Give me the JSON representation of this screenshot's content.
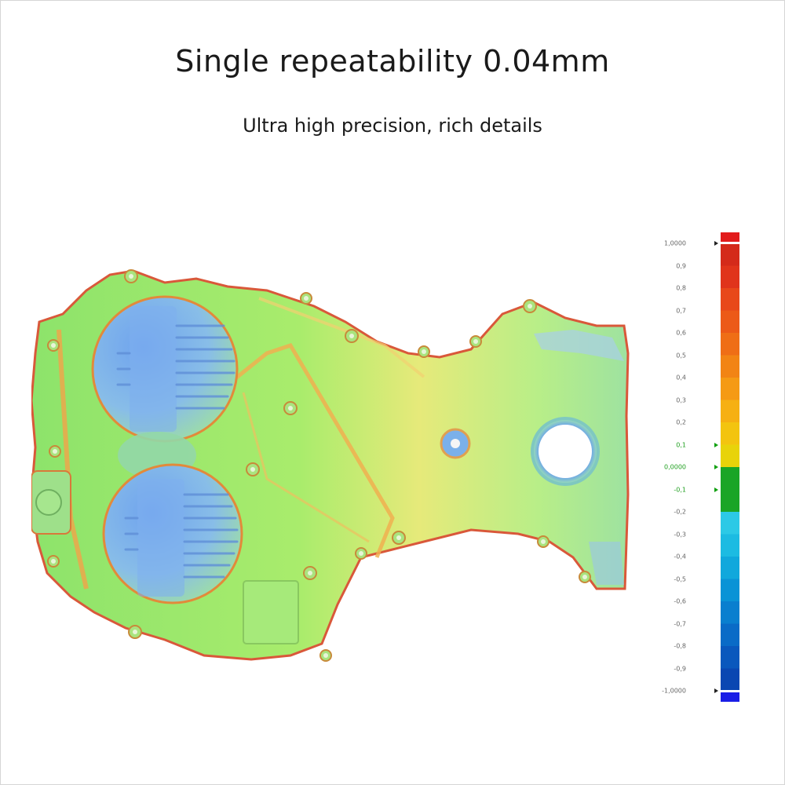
{
  "header": {
    "title": "Single repeatability 0.04mm",
    "subtitle": "Ultra high precision, rich details"
  },
  "color_scale": {
    "labels": [
      "1,0000",
      "0,9",
      "0,8",
      "0,7",
      "0,6",
      "0,5",
      "0,4",
      "0,3",
      "0,2",
      "0,1",
      "0,0000",
      "-0,1",
      "-0,2",
      "-0,3",
      "-0,4",
      "-0,5",
      "-0,6",
      "-0,7",
      "-0,8",
      "-0,9",
      "-1,0000"
    ],
    "bands": [
      "#d42a1a",
      "#e0341b",
      "#e8481a",
      "#ec5a18",
      "#ef6e16",
      "#f28414",
      "#f59a14",
      "#f6b012",
      "#f3c40f",
      "#e8d30a",
      "#1aa526",
      "#1aa526",
      "#2cc9e6",
      "#1cbbe2",
      "#10a8dc",
      "#0a93d6",
      "#0a7fcf",
      "#0a6bc7",
      "#0a58bd",
      "#0a47b2"
    ],
    "overflow_high": "#e21b1b",
    "overflow_low": "#1a1ee6"
  },
  "part_colors": {
    "base": "#8be86a",
    "warm": "#f0e27a",
    "hot": "#f29a4a",
    "cool": "#7fb6ef",
    "edge": "#e05a3a"
  }
}
